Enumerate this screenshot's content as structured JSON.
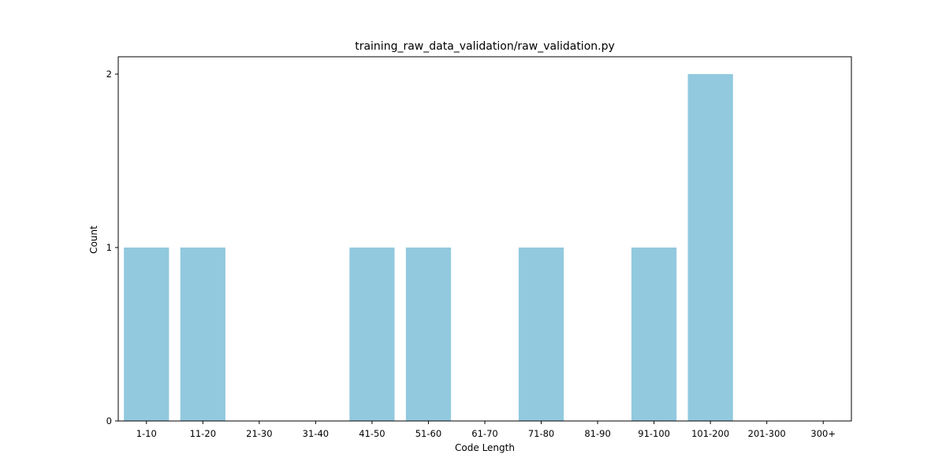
{
  "chart_data": {
    "type": "bar",
    "title": "training_raw_data_validation/raw_validation.py",
    "xlabel": "Code Length",
    "ylabel": "Count",
    "categories": [
      "1-10",
      "11-20",
      "21-30",
      "31-40",
      "41-50",
      "51-60",
      "61-70",
      "71-80",
      "81-90",
      "91-100",
      "101-200",
      "201-300",
      "300+"
    ],
    "values": [
      1,
      1,
      0,
      0,
      1,
      1,
      0,
      1,
      0,
      1,
      2,
      0,
      0
    ],
    "yticks": [
      "0",
      "1",
      "2"
    ],
    "ylim": [
      0,
      2.1
    ],
    "grid": false,
    "legend": "none",
    "bar_color": "#92c9df"
  }
}
